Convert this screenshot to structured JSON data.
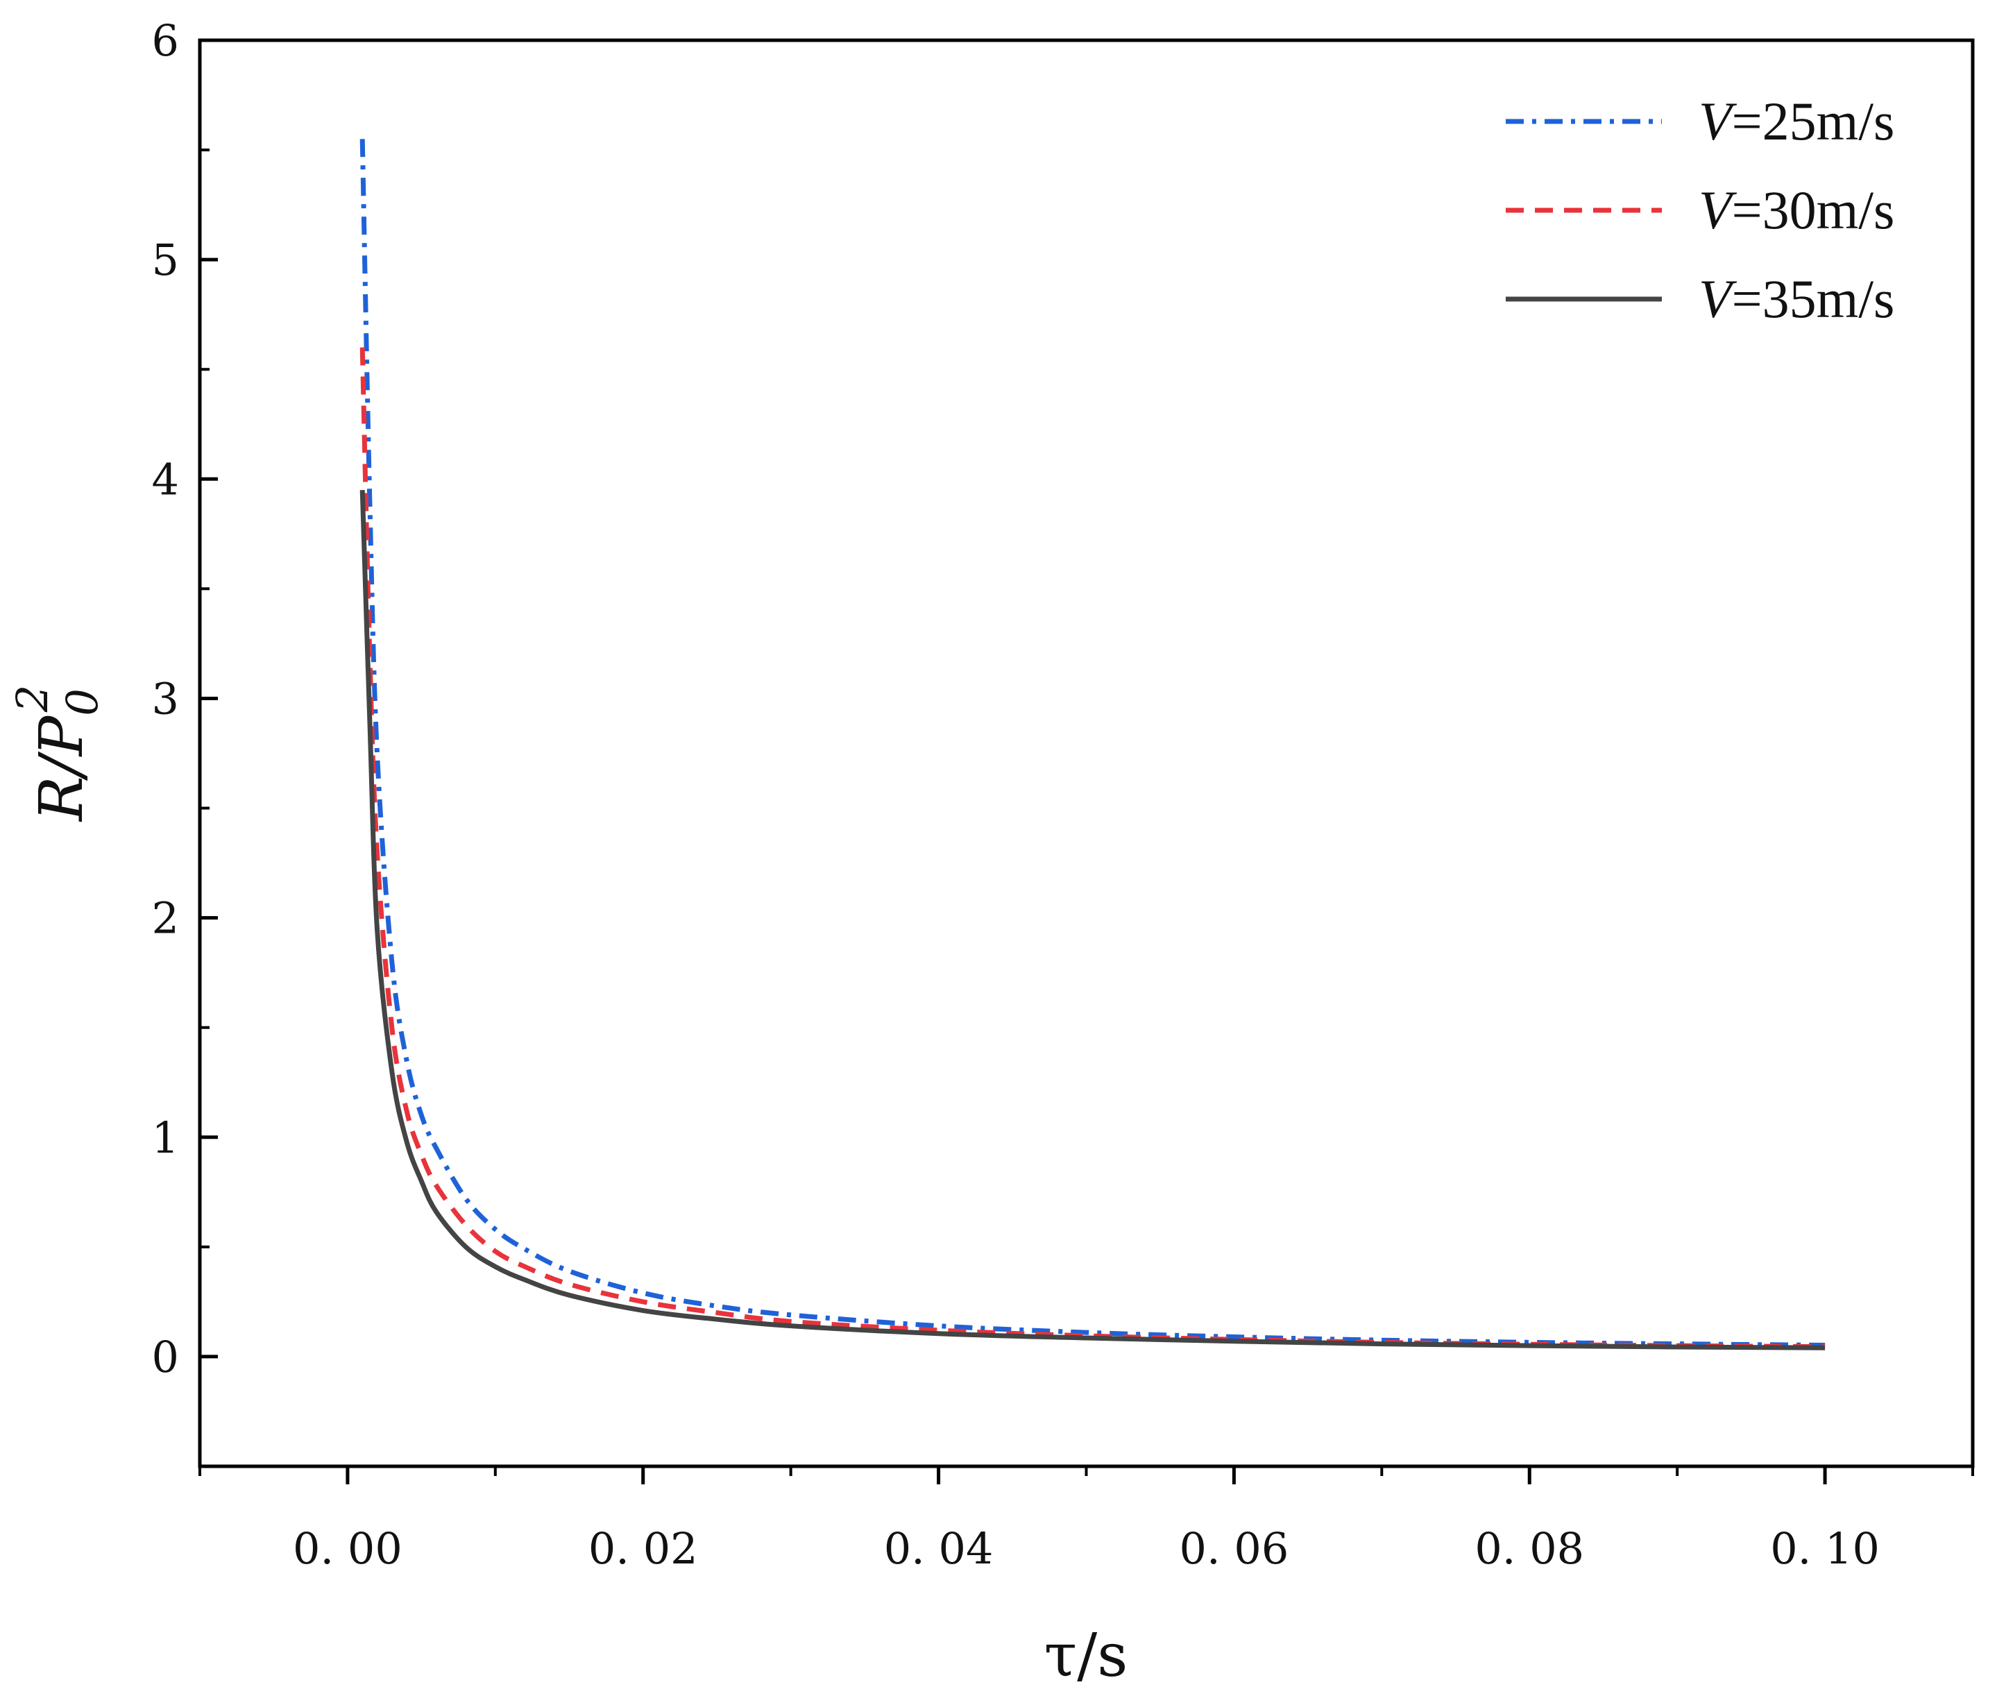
{
  "chart_data": {
    "type": "line",
    "title": "",
    "xlabel": "τ/s",
    "ylabel": {
      "main": "R/P",
      "subscript": "0",
      "superscript": "2"
    },
    "xlim": [
      -0.01,
      0.11
    ],
    "ylim": [
      -0.5,
      6
    ],
    "x_ticks": [
      0.0,
      0.02,
      0.04,
      0.06,
      0.08,
      0.1
    ],
    "x_tick_labels": [
      "0. 00",
      "0. 02",
      "0. 04",
      "0. 06",
      "0. 08",
      "0. 10"
    ],
    "y_ticks": [
      0,
      1,
      2,
      3,
      4,
      5,
      6
    ],
    "y_tick_labels": [
      "0",
      "1",
      "2",
      "3",
      "4",
      "5",
      "6"
    ],
    "grid": false,
    "legend_position": "top-right",
    "series": [
      {
        "name": "V=25m/s",
        "legend_symbol": "V",
        "legend_value": "=25m/s",
        "color": "#1f62d8",
        "dash": "dashdot",
        "x": [
          0.001,
          0.0015,
          0.002,
          0.003,
          0.004,
          0.005,
          0.006,
          0.008,
          0.01,
          0.012,
          0.015,
          0.02,
          0.025,
          0.03,
          0.04,
          0.05,
          0.06,
          0.07,
          0.08,
          0.09,
          0.1
        ],
        "y": [
          5.55,
          3.9,
          2.75,
          1.8,
          1.35,
          1.1,
          0.95,
          0.72,
          0.58,
          0.49,
          0.39,
          0.29,
          0.23,
          0.19,
          0.14,
          0.11,
          0.09,
          0.075,
          0.065,
          0.058,
          0.052
        ]
      },
      {
        "name": "V=30m/s",
        "legend_symbol": "V",
        "legend_value": "=30m/s",
        "color": "#e8333b",
        "dash": "dashed",
        "x": [
          0.001,
          0.0015,
          0.002,
          0.003,
          0.004,
          0.005,
          0.006,
          0.008,
          0.01,
          0.012,
          0.015,
          0.02,
          0.025,
          0.03,
          0.04,
          0.05,
          0.06,
          0.07,
          0.08,
          0.09,
          0.1
        ],
        "y": [
          4.6,
          3.2,
          2.3,
          1.5,
          1.12,
          0.92,
          0.78,
          0.6,
          0.48,
          0.41,
          0.33,
          0.25,
          0.2,
          0.16,
          0.12,
          0.095,
          0.078,
          0.065,
          0.056,
          0.05,
          0.045
        ]
      },
      {
        "name": "V=35m/s",
        "legend_symbol": "V",
        "legend_value": "=35m/s",
        "color": "#444444",
        "dash": "solid",
        "x": [
          0.001,
          0.0015,
          0.002,
          0.003,
          0.004,
          0.005,
          0.006,
          0.008,
          0.01,
          0.012,
          0.015,
          0.02,
          0.025,
          0.03,
          0.04,
          0.05,
          0.06,
          0.07,
          0.08,
          0.09,
          0.1
        ],
        "y": [
          3.95,
          2.9,
          1.95,
          1.3,
          0.98,
          0.8,
          0.66,
          0.5,
          0.41,
          0.35,
          0.28,
          0.21,
          0.17,
          0.14,
          0.105,
          0.085,
          0.07,
          0.058,
          0.05,
          0.044,
          0.04
        ]
      }
    ]
  }
}
